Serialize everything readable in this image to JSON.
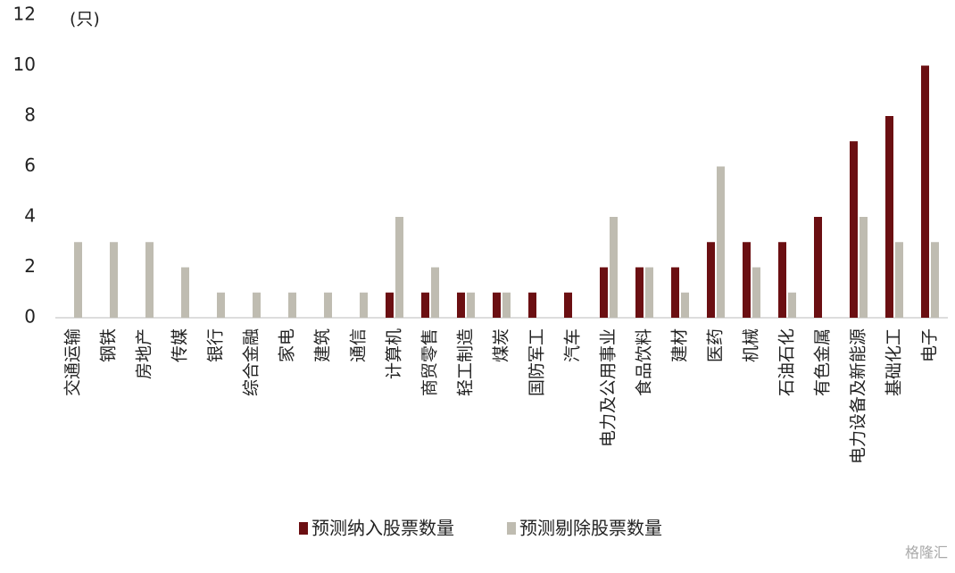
{
  "chart_data": {
    "type": "bar",
    "y_unit_label": "(只)",
    "categories": [
      "交通运输",
      "钢铁",
      "房地产",
      "传媒",
      "银行",
      "综合金融",
      "家电",
      "建筑",
      "通信",
      "计算机",
      "商贸零售",
      "轻工制造",
      "煤炭",
      "国防军工",
      "汽车",
      "电力及公用事业",
      "食品饮料",
      "建材",
      "医药",
      "机械",
      "石油石化",
      "有色金属",
      "电力设备及新能源",
      "基础化工",
      "电子"
    ],
    "series": [
      {
        "name": "预测纳入股票数量",
        "color": "#6b0f12",
        "values": [
          0,
          0,
          0,
          0,
          0,
          0,
          0,
          0,
          0,
          1,
          1,
          1,
          1,
          1,
          1,
          2,
          2,
          2,
          3,
          3,
          3,
          4,
          7,
          8,
          10
        ]
      },
      {
        "name": "预测剔除股票数量",
        "color": "#bfbcb1",
        "values": [
          3,
          3,
          3,
          2,
          1,
          1,
          1,
          1,
          1,
          4,
          2,
          1,
          1,
          0,
          0,
          4,
          2,
          1,
          6,
          2,
          1,
          0,
          4,
          3,
          3
        ]
      }
    ],
    "ylim": [
      0,
      12
    ],
    "yticks": [
      0,
      2,
      4,
      6,
      8,
      10,
      12
    ],
    "grid": false,
    "legend": "bottom",
    "watermark": "格隆汇"
  }
}
